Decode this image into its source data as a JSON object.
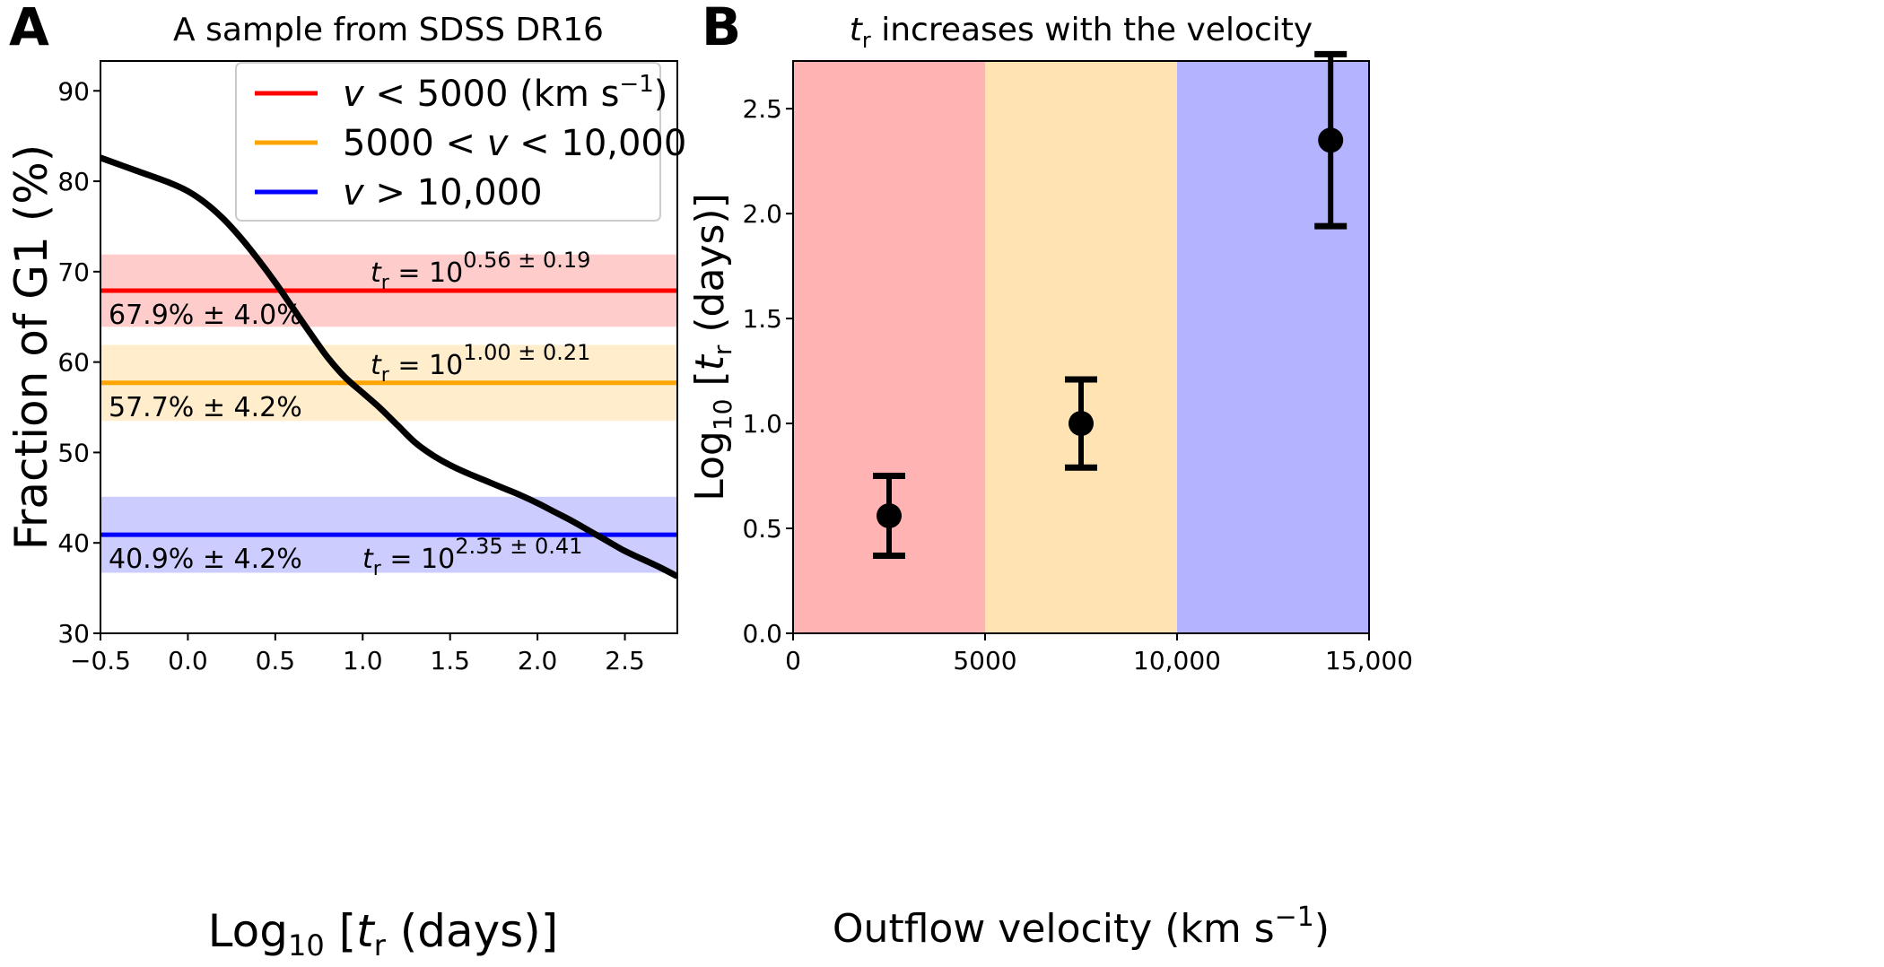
{
  "chart_data": [
    {
      "panel": "A",
      "type": "line",
      "title": "A sample from SDSS DR16",
      "xlabel": "Log10 [t_r (days)]",
      "xlabel_parts": {
        "main": "Log",
        "sub": "10",
        "open": " [",
        "var": "t",
        "var_sub": "r",
        "rest": " (days)]"
      },
      "ylabel": "Fraction of G1 (%)",
      "xlim": [
        -0.5,
        2.8
      ],
      "ylim": [
        30,
        93.3
      ],
      "xticks": [
        -0.5,
        0.0,
        0.5,
        1.0,
        1.5,
        2.0,
        2.5
      ],
      "xtick_labels": [
        "−0.5",
        "0.0",
        "0.5",
        "1.0",
        "1.5",
        "2.0",
        "2.5"
      ],
      "yticks": [
        30,
        40,
        50,
        60,
        70,
        80,
        90
      ],
      "ytick_labels": [
        "30",
        "40",
        "50",
        "60",
        "70",
        "80",
        "90"
      ],
      "grid": false,
      "curve": {
        "name": "G1 fraction model",
        "color": "#000000",
        "x": [
          -0.5,
          -0.3,
          -0.1,
          0.0,
          0.1,
          0.2,
          0.3,
          0.4,
          0.5,
          0.6,
          0.7,
          0.8,
          0.9,
          1.0,
          1.1,
          1.2,
          1.3,
          1.4,
          1.5,
          1.6,
          1.7,
          1.8,
          1.9,
          2.0,
          2.1,
          2.2,
          2.3,
          2.4,
          2.5,
          2.6,
          2.7,
          2.8
        ],
        "y": [
          82.6,
          81.2,
          79.8,
          78.9,
          77.6,
          75.9,
          73.8,
          71.4,
          68.8,
          66.0,
          63.2,
          60.5,
          58.3,
          56.6,
          54.9,
          53.0,
          51.1,
          49.7,
          48.6,
          47.7,
          46.9,
          46.1,
          45.3,
          44.4,
          43.4,
          42.4,
          41.3,
          40.2,
          39.1,
          38.2,
          37.3,
          36.3
        ]
      },
      "bands": [
        {
          "name": "v < 5000",
          "color": "#ff0000",
          "fill": "#ffcccc",
          "center": 67.9,
          "err": 4.0,
          "label": "67.9% ± 4.0%",
          "tr_prefix": "t",
          "tr_sub": "r",
          "tr_eq": " =  10",
          "tr_exp": "0.56 ± 0.19"
        },
        {
          "name": "5000 < v < 10,000",
          "color": "#ffa500",
          "fill": "#ffedcc",
          "center": 57.7,
          "err": 4.2,
          "label": "57.7% ± 4.2%",
          "tr_prefix": "t",
          "tr_sub": "r",
          "tr_eq": " =  10",
          "tr_exp": "1.00 ± 0.21"
        },
        {
          "name": "v > 10,000",
          "color": "#0000ff",
          "fill": "#ccccff",
          "center": 40.9,
          "err": 4.2,
          "label": "40.9% ± 4.2%",
          "tr_prefix": "t",
          "tr_sub": "r",
          "tr_eq": " =  10",
          "tr_exp": "2.35 ± 0.41"
        }
      ],
      "legend": {
        "placement": "top-right",
        "entries": [
          {
            "color": "#ff0000",
            "parts": [
              {
                "t": "v",
                "i": true
              },
              {
                "t": " < 5000 (km s"
              },
              {
                "t": "−1",
                "sup": true
              },
              {
                "t": ")"
              }
            ]
          },
          {
            "color": "#ffa500",
            "parts": [
              {
                "t": "5000  < "
              },
              {
                "t": "v",
                "i": true
              },
              {
                "t": " < 10,000"
              }
            ]
          },
          {
            "color": "#0000ff",
            "parts": [
              {
                "t": "v",
                "i": true
              },
              {
                "t": " > 10,000"
              }
            ]
          }
        ]
      }
    },
    {
      "panel": "B",
      "type": "scatter",
      "title": "t_r increases with the velocity",
      "title_parts": {
        "var": "t",
        "var_sub": "r",
        "rest": " increases with the velocity"
      },
      "xlabel": "Outflow velocity (km s^-1)",
      "xlabel_parts": {
        "main": "Outflow velocity (km s",
        "sup": "−1",
        "end": ")"
      },
      "ylabel": "Log10 [t_r (days)]",
      "xlim": [
        0,
        15000
      ],
      "ylim": [
        0,
        2.8
      ],
      "xticks": [
        0,
        5000,
        10000,
        15000
      ],
      "xtick_labels": [
        "0",
        "5000",
        "10,000",
        "15,000"
      ],
      "yticks": [
        0.0,
        0.5,
        1.0,
        1.5,
        2.0,
        2.5
      ],
      "ytick_labels": [
        "0.0",
        "0.5",
        "1.0",
        "1.5",
        "2.0",
        "2.5"
      ],
      "grid": false,
      "regions": [
        {
          "x0": 0,
          "x1": 5000,
          "fill": "#ffb3b3"
        },
        {
          "x0": 5000,
          "x1": 10000,
          "fill": "#ffe3b3"
        },
        {
          "x0": 10000,
          "x1": 15000,
          "fill": "#b3b3ff"
        }
      ],
      "points": [
        {
          "x": 2500,
          "y": 0.56,
          "err": 0.19
        },
        {
          "x": 7500,
          "y": 1.0,
          "err": 0.21
        },
        {
          "x": 14000,
          "y": 2.35,
          "err": 0.41
        }
      ]
    }
  ],
  "panel_letters": [
    "A",
    "B"
  ]
}
